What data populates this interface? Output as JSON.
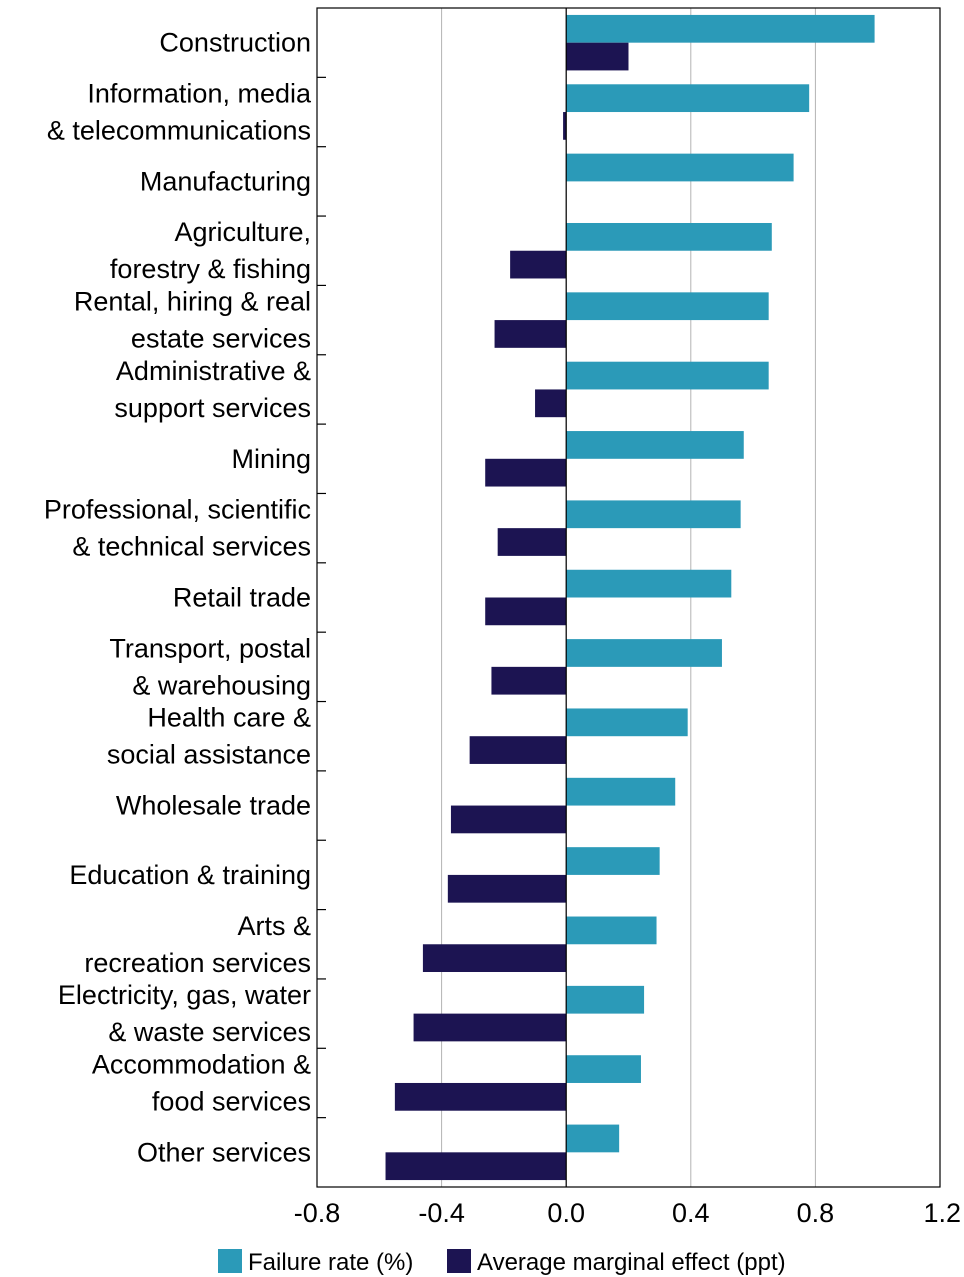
{
  "chart_data": {
    "type": "bar",
    "orientation": "horizontal",
    "categories": [
      [
        "Construction"
      ],
      [
        "Information, media",
        "& telecommunications"
      ],
      [
        "Manufacturing"
      ],
      [
        "Agriculture,",
        "forestry & fishing"
      ],
      [
        "Rental, hiring & real",
        "estate services"
      ],
      [
        "Administrative &",
        "support services"
      ],
      [
        "Mining"
      ],
      [
        "Professional, scientific",
        "& technical services"
      ],
      [
        "Retail trade"
      ],
      [
        "Transport, postal",
        "& warehousing"
      ],
      [
        "Health care &",
        "social assistance"
      ],
      [
        "Wholesale trade"
      ],
      [
        "Education & training"
      ],
      [
        "Arts &",
        "recreation services"
      ],
      [
        "Electricity, gas, water",
        "& waste services"
      ],
      [
        "Accommodation &",
        "food services"
      ],
      [
        "Other services"
      ]
    ],
    "series": [
      {
        "name": "Failure rate (%)",
        "color": "#2b9ab8",
        "values": [
          0.99,
          0.78,
          0.73,
          0.66,
          0.65,
          0.65,
          0.57,
          0.56,
          0.53,
          0.5,
          0.39,
          0.35,
          0.3,
          0.29,
          0.25,
          0.24,
          0.17
        ]
      },
      {
        "name": "Average marginal effect (ppt)",
        "color": "#1c1452",
        "values": [
          0.2,
          -0.01,
          0.0,
          -0.18,
          -0.23,
          -0.1,
          -0.26,
          -0.22,
          -0.26,
          -0.24,
          -0.31,
          -0.37,
          -0.38,
          -0.46,
          -0.49,
          -0.55,
          -0.58
        ]
      }
    ],
    "xlim": [
      -0.8,
      1.2
    ],
    "xticks": [
      "-0.8",
      "-0.4",
      "0.0",
      "0.4",
      "0.8",
      "1.2"
    ],
    "xtick_values": [
      -0.8,
      -0.4,
      0.0,
      0.4,
      0.8,
      1.2
    ],
    "grid": "vertical",
    "legend_position": "bottom",
    "title": "",
    "xlabel": "",
    "ylabel": ""
  }
}
